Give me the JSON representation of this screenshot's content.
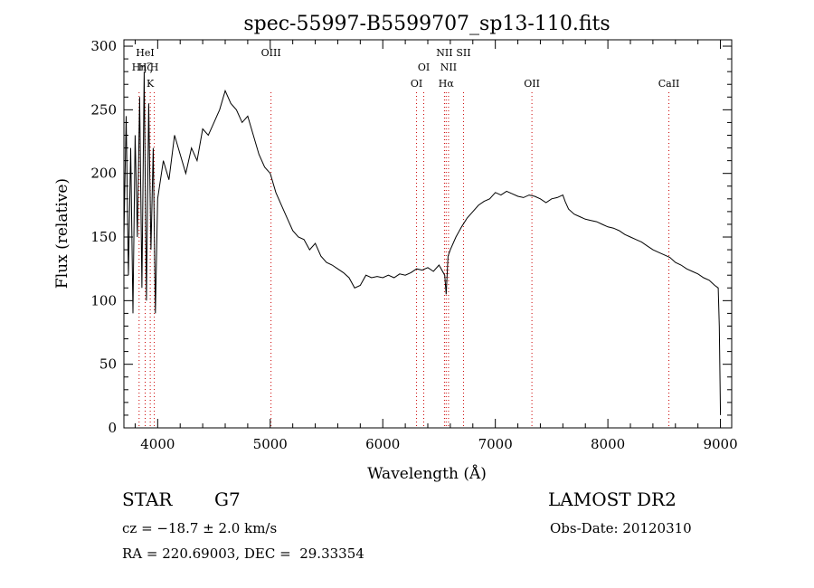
{
  "colors": {
    "axis": "#000000",
    "spectrum": "#000000",
    "line_marker": "#cc0000"
  },
  "chart_data": {
    "type": "line",
    "title": "spec-55997-B5599707_sp13-110.fits",
    "xlabel": "Wavelength (Å)",
    "ylabel": "Flux (relative)",
    "xlim": [
      3700,
      9100
    ],
    "ylim": [
      0,
      305
    ],
    "xticks": [
      4000,
      5000,
      6000,
      7000,
      8000,
      9000
    ],
    "yticks": [
      0,
      50,
      100,
      150,
      200,
      250,
      300
    ],
    "grid": false,
    "legend": "none",
    "series": [
      {
        "x": [
          3700,
          3720,
          3740,
          3760,
          3780,
          3800,
          3820,
          3840,
          3860,
          3880,
          3900,
          3920,
          3940,
          3960,
          3980,
          4000,
          4050,
          4100,
          4150,
          4200,
          4250,
          4300,
          4350,
          4400,
          4450,
          4500,
          4550,
          4600,
          4650,
          4700,
          4750,
          4800,
          4850,
          4900,
          4950,
          5000,
          5050,
          5100,
          5150,
          5200,
          5250,
          5300,
          5350,
          5400,
          5450,
          5500,
          5550,
          5600,
          5650,
          5700,
          5750,
          5800,
          5850,
          5900,
          5950,
          6000,
          6050,
          6100,
          6150,
          6200,
          6250,
          6300,
          6350,
          6400,
          6450,
          6500,
          6550,
          6563,
          6580,
          6600,
          6650,
          6700,
          6750,
          6800,
          6850,
          6900,
          6950,
          7000,
          7050,
          7100,
          7150,
          7200,
          7250,
          7300,
          7350,
          7400,
          7450,
          7500,
          7550,
          7600,
          7620,
          7650,
          7700,
          7750,
          7800,
          7850,
          7900,
          7950,
          8000,
          8050,
          8100,
          8150,
          8200,
          8250,
          8300,
          8350,
          8400,
          8450,
          8500,
          8550,
          8600,
          8650,
          8700,
          8750,
          8800,
          8850,
          8900,
          8950,
          8980,
          8990,
          9000
        ],
        "y": [
          150,
          245,
          120,
          220,
          90,
          230,
          150,
          260,
          110,
          280,
          100,
          255,
          140,
          220,
          90,
          180,
          210,
          195,
          230,
          215,
          200,
          220,
          210,
          235,
          230,
          240,
          250,
          265,
          255,
          250,
          240,
          245,
          230,
          215,
          205,
          200,
          185,
          175,
          165,
          155,
          150,
          148,
          140,
          145,
          135,
          130,
          128,
          125,
          122,
          118,
          110,
          112,
          120,
          118,
          119,
          118,
          120,
          118,
          121,
          120,
          122,
          125,
          124,
          126,
          123,
          128,
          120,
          105,
          135,
          140,
          150,
          158,
          165,
          170,
          175,
          178,
          180,
          185,
          183,
          186,
          184,
          182,
          181,
          183,
          182,
          180,
          177,
          180,
          181,
          183,
          178,
          172,
          168,
          166,
          164,
          163,
          162,
          160,
          158,
          157,
          155,
          152,
          150,
          148,
          146,
          143,
          140,
          138,
          136,
          134,
          130,
          128,
          125,
          123,
          121,
          118,
          116,
          112,
          110,
          80,
          10
        ]
      }
    ],
    "annotations": [
      {
        "x": 3889,
        "label": "HeI",
        "row": 1
      },
      {
        "x": 3835,
        "label": "Hη",
        "row": 2
      },
      {
        "x": 3889,
        "label": "Hζ",
        "row": 2
      },
      {
        "x": 3970,
        "label": "H",
        "row": 2
      },
      {
        "x": 3934,
        "label": "K",
        "row": 3
      },
      {
        "x": 5007,
        "label": "OIII",
        "row": 1
      },
      {
        "x": 6300,
        "label": "OI",
        "row": 3
      },
      {
        "x": 6364,
        "label": "OI",
        "row": 2
      },
      {
        "x": 6548,
        "label": "NII",
        "row": 1
      },
      {
        "x": 6584,
        "label": "NII",
        "row": 2
      },
      {
        "x": 6563,
        "label": "Hα",
        "row": 3
      },
      {
        "x": 6717,
        "label": "SII",
        "row": 1
      },
      {
        "x": 7325,
        "label": "OII",
        "row": 3
      },
      {
        "x": 8542,
        "label": "CaII",
        "row": 3
      }
    ]
  },
  "footer": {
    "object_class": "STAR",
    "subclass": "G7",
    "cz": "cz = −18.7 ± 2.0 km/s",
    "coords": "RA = 220.69003, DEC =  29.33354",
    "survey": "LAMOST DR2",
    "obs_date": "Obs-Date: 20120310"
  }
}
